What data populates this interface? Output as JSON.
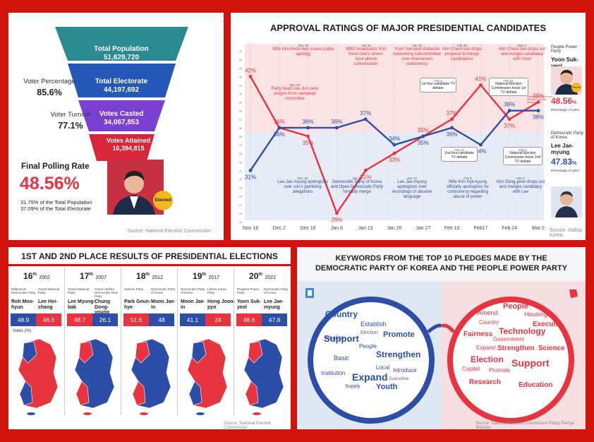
{
  "funnel": {
    "stages": [
      {
        "label": "Total Population",
        "value": "51,629,720"
      },
      {
        "label": "Total Electorate",
        "value": "44,197,692"
      },
      {
        "label": "Votes Casted",
        "value": "34,067,853"
      },
      {
        "label": "Votes Attained",
        "value": "16,394,815"
      }
    ],
    "voter_percentage_label": "Voter Percentage",
    "voter_percentage_value": "85.6%",
    "voter_turnout_label": "Voter Turnout",
    "voter_turnout_value": "77.1%",
    "final_rate_label": "Final Polling Rate",
    "final_rate_value": "48.56%",
    "note1": "31.75% of the Total Population",
    "note2": "37.09% of the Total Electorate",
    "elected_badge": "Elected",
    "source": "Source: National Election Commission",
    "colors": {
      "teal": "#2a8a8f",
      "blue": "#2457b8",
      "purple": "#7b3fd1",
      "red": "#d8273a",
      "accent": "#e8343f"
    }
  },
  "chart_data": {
    "type": "line",
    "title": "APPROVAL RATINGS OF MAJOR PRESIDENTIAL CANDIDATES",
    "categories": [
      "Nov 18",
      "Dec 2",
      "Dec 16",
      "Jan 6",
      "Jan 13",
      "Jan 20",
      "Jan 27",
      "Feb 10",
      "Feb17",
      "Feb 24",
      "Mar 2"
    ],
    "x_positions_labels": [
      "Nov 18",
      "Dec 2",
      "Dec 16",
      "Jan 6",
      "Jan 13",
      "Jan 20",
      "Jan 27",
      "Feb 10",
      "Feb17",
      "Feb 24",
      "Mar 2"
    ],
    "y_ticks": [
      "45",
      "44",
      "43",
      "42",
      "41",
      "40",
      "39",
      "38",
      "37",
      "36",
      "35",
      "34",
      "33",
      "32",
      "31",
      "30",
      "29",
      "28",
      "27",
      "26",
      "25"
    ],
    "ylim": [
      25,
      45
    ],
    "series": [
      {
        "name": "Yoon Suk-yeol",
        "color": "#e8343f",
        "values": [
          42,
          36,
          35,
          26,
          31,
          33,
          35,
          37,
          41,
          37,
          39
        ]
      },
      {
        "name": "Lee Jae-myung",
        "color": "#2c4ea8",
        "values": [
          31,
          36,
          36,
          36,
          37,
          34,
          35,
          36,
          34,
          38,
          38
        ]
      }
    ],
    "value_labels": {
      "red": [
        "42%",
        "36%",
        "35%",
        "26%",
        "31%",
        "33%",
        "35%",
        "37%",
        "41%",
        "37%",
        "39%"
      ],
      "blue": [
        "31%",
        "36%",
        "36%",
        "36%",
        "37%",
        "34%",
        "35%",
        "36%",
        "34%",
        "38%",
        "38%"
      ]
    },
    "annotations_top": [
      {
        "date": "Dec 26",
        "text": "Wife Kim Keon-hee issues public apology"
      },
      {
        "date": "Dec 20",
        "text": "Party head Lee Jun-seok resigns from campaign committee"
      },
      {
        "date": "Jan 18",
        "text": "MBC broadcasts 'Kim Keon-hee's seven-hour phone conversation'"
      },
      {
        "date": "Jan 18",
        "text": "Yoon Suk-yeol disbands networking subcommittee over shamanism controversy"
      },
      {
        "date": "Feb 20",
        "text": "Ahn Cheol-soo drops proposal to merge candidacies"
      },
      {
        "date": "Mar 3",
        "text": "Ahn Cheol-soo drops out and merges candidacy with Yoon"
      }
    ],
    "annotations_bottom": [
      {
        "date": "Dec 16",
        "text": "Lee Jae-myung apologizes over son's gambling allegations"
      },
      {
        "date": "Jan 18",
        "text": "Democratic Party of Korea and Open Democratic Party formally merge"
      },
      {
        "date": "Jan 19",
        "text": "Lee Jae-myung apologizes over recordings of abusive language"
      },
      {
        "date": "Feb 9",
        "text": "Wife Kim Hye-kyung officially apologizes for controversy regarding abuse of power"
      },
      {
        "date": "Mar 2",
        "text": "Kim Dong-yeon drops out and merges candidacy with Lee"
      }
    ],
    "debates": [
      {
        "date": "Feb 3",
        "text": "1st four-candidate TV debate"
      },
      {
        "date": "Feb 21",
        "text": "National Election Commission hosts 1st TV debate"
      },
      {
        "date": "Feb 11",
        "text": "2nd four-candidate TV debate"
      },
      {
        "date": "Mar 2",
        "text": "National Election Commission hosts 2nd TV debate"
      }
    ],
    "small_note": "*Before Ahn Cheol-soo withdrew from the campaign",
    "candidates": [
      {
        "party": "People Power Party",
        "name": "Yoon Suk-yeol",
        "pct": "48.56",
        "pct_suffix": "%",
        "caption": "Percentage of votes",
        "badge": "Elected"
      },
      {
        "party": "Democratic Party of Korea",
        "name": "Lee Jae-myung",
        "pct": "47.83",
        "pct_suffix": "%",
        "caption": "Percentage of votes"
      }
    ],
    "source": "Source: Gallup Korea"
  },
  "results": {
    "title": "1ST AND 2ND PLACE RESULTS OF PRESIDENTIAL ELECTIONS",
    "votes_label": "Votes (%)",
    "elections": [
      {
        "num": "16",
        "sup": "th",
        "year": "2002",
        "left_party": "Millennium Democratic Party",
        "left_name": "Roh Moo-hyun",
        "right_party": "Grand National Party",
        "right_name": "Lee Hoi-chang",
        "left_val": "48.9",
        "right_val": "46.6",
        "left_color": "#2c4ea8",
        "right_color": "#e8343f"
      },
      {
        "num": "17",
        "sup": "th",
        "year": "2007",
        "left_party": "Grand National Party",
        "left_name": "Lee Myung-bak",
        "right_party": "Grand Unified Democratic New Party",
        "right_name": "Chung Dong-young",
        "left_val": "48.7",
        "right_val": "26.1",
        "left_color": "#e8343f",
        "right_color": "#2c4ea8"
      },
      {
        "num": "18",
        "sup": "th",
        "year": "2012",
        "left_party": "Saenuri Party",
        "left_name": "Park Geun-hye",
        "right_party": "Democratic Party of Korea",
        "right_name": "Moon Jae-in",
        "left_val": "51.6",
        "right_val": "48",
        "left_color": "#e8343f",
        "right_color": "#2c4ea8"
      },
      {
        "num": "19",
        "sup": "th",
        "year": "2017",
        "left_party": "Democratic Party of Korea",
        "left_name": "Moon Jae-in",
        "right_party": "Liberty Korea Party",
        "right_name": "Hong Joon-pyo",
        "left_val": "41.1",
        "right_val": "24",
        "left_color": "#2c4ea8",
        "right_color": "#e8343f"
      },
      {
        "num": "20",
        "sup": "th",
        "year": "2022",
        "left_party": "People's Power Party",
        "left_name": "Yoon Suk-yeol",
        "right_party": "Democratic Party of Korea",
        "right_name": "Lee Jae-myung",
        "left_val": "48.6",
        "right_val": "47.8",
        "left_color": "#e8343f",
        "right_color": "#2c4ea8"
      }
    ],
    "source": "Source: National Election Commission"
  },
  "keywords": {
    "title_line1": "KEYWORDS FROM THE TOP 10 PLEDGES MADE BY THE",
    "title_line2": "DEMOCRATIC PARTY OF KOREA AND THE PEOPLE POWER PARTY",
    "left": [
      "Country",
      "Establish",
      "Realize",
      "Election",
      "Promote",
      "Support",
      "People",
      "Strengthen",
      "Basic",
      "Local",
      "Introduce",
      "Institution",
      "Expand",
      "Guarantee",
      "Supply",
      "Youth"
    ],
    "right": [
      "People",
      "Amend",
      "Housing",
      "Execute",
      "Country",
      "Technology",
      "Fairness",
      "Government",
      "Expand",
      "Strengthen",
      "Science",
      "Election",
      "Support",
      "Capitol",
      "Promote",
      "Research",
      "Education"
    ],
    "source": "Source: National Election Commission Policy Pledge Website"
  }
}
